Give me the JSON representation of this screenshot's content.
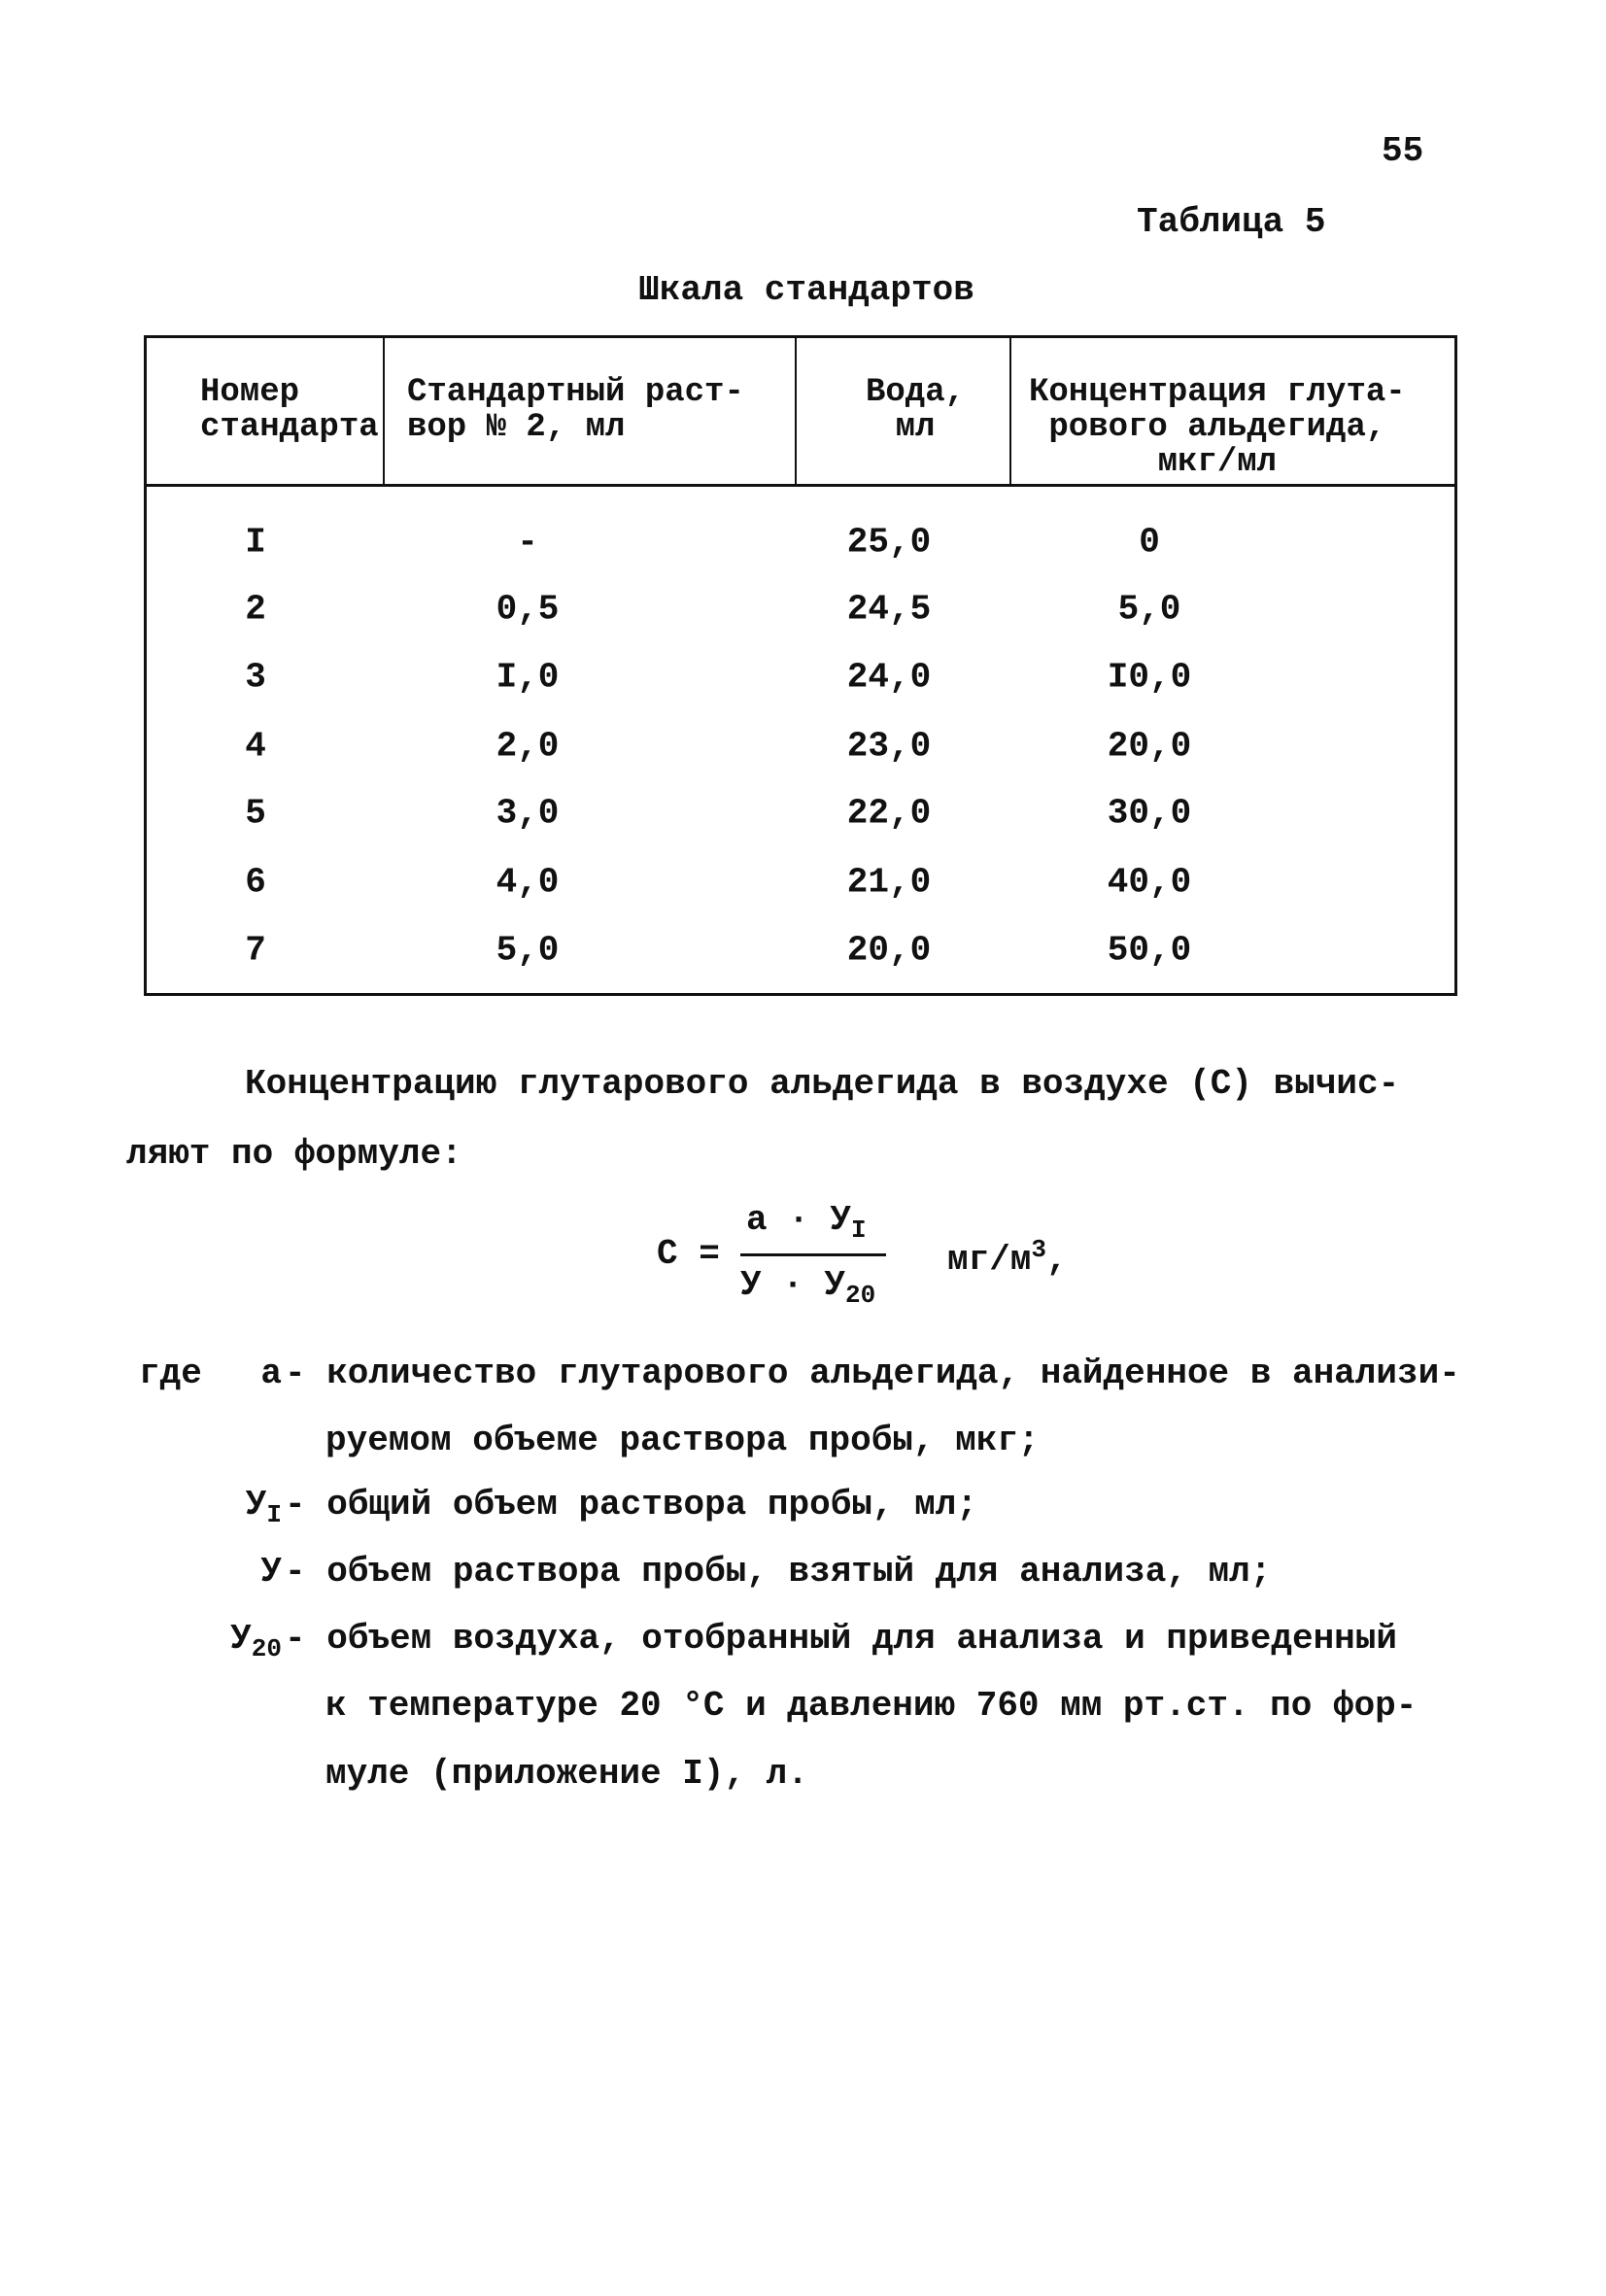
{
  "page_number": "55",
  "table_label": "Таблица 5",
  "table_title": "Шкала стандартов",
  "table": {
    "headers": [
      "Номер\nстандарта",
      "Стандартный раст-\nвор № 2, мл",
      "Вода,\nмл",
      "Концентрация глута-\nрового альдегида,\nмкг/мл"
    ],
    "rows": [
      [
        "I",
        "-",
        "25,0",
        "0"
      ],
      [
        "2",
        "0,5",
        "24,5",
        "5,0"
      ],
      [
        "3",
        "I,0",
        "24,0",
        "I0,0"
      ],
      [
        "4",
        "2,0",
        "23,0",
        "20,0"
      ],
      [
        "5",
        "3,0",
        "22,0",
        "30,0"
      ],
      [
        "6",
        "4,0",
        "21,0",
        "40,0"
      ],
      [
        "7",
        "5,0",
        "20,0",
        "50,0"
      ]
    ]
  },
  "paragraph": {
    "line1": "Концентрацию глутарового альдегида в воздухе (С) вычис-",
    "line2": "ляют по формуле:"
  },
  "formula": {
    "lhs": "С =",
    "numerator": "а · У",
    "numerator_sub": "I",
    "denominator": "У · У",
    "denominator_sub": "20",
    "unit": "мг/м",
    "unit_sup": "3",
    "unit_tail": ","
  },
  "where": {
    "word": "где",
    "items": [
      {
        "symbol": "а",
        "sub": "",
        "lines": [
          "- количество глутарового альдегида, найденное в анализи-",
          "руемом объеме раствора пробы, мкг;"
        ]
      },
      {
        "symbol": "У",
        "sub": "I",
        "lines": [
          "- общий объем раствора пробы, мл;"
        ]
      },
      {
        "symbol": "У",
        "sub": "",
        "lines": [
          "- объем раствора пробы, взятый для анализа, мл;"
        ]
      },
      {
        "symbol": "У",
        "sub": "20",
        "lines": [
          "- объем воздуха, отобранный для анализа и приведенный",
          "к температуре 20 °С и давлению 760 мм рт.ст. по фор-",
          "муле (приложение I), л."
        ]
      }
    ]
  }
}
